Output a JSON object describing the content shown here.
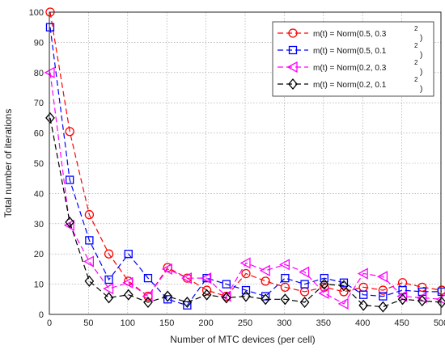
{
  "chart_data": {
    "type": "line",
    "xlabel": "Number of MTC devices (per cell)",
    "ylabel": "Total number of iterations",
    "xlim": [
      0,
      500
    ],
    "ylim": [
      0,
      100
    ],
    "xticks": [
      "0",
      "50",
      "100",
      "150",
      "200",
      "250",
      "300",
      "350",
      "400",
      "450",
      "500"
    ],
    "yticks": [
      "0",
      "10",
      "20",
      "30",
      "40",
      "50",
      "60",
      "70",
      "80",
      "90",
      "100"
    ],
    "grid": true,
    "legend_position": "top-right",
    "x": [
      1,
      26,
      51,
      76,
      101,
      126,
      151,
      176,
      201,
      226,
      251,
      276,
      301,
      326,
      351,
      376,
      401,
      426,
      451,
      476,
      501
    ],
    "series": [
      {
        "name": "m(t) = Norm(0.5, 0.3",
        "sup": "2",
        "close": ")",
        "color": "#ff0000",
        "marker": "circle",
        "values": [
          100,
          60.5,
          33,
          20,
          11,
          6,
          15.5,
          12,
          8,
          6,
          13.5,
          11,
          9,
          7.5,
          9,
          7.5,
          9,
          8,
          10.5,
          9,
          8
        ]
      },
      {
        "name": "m(t) = Norm(0.5, 0.1",
        "sup": "2",
        "close": ")",
        "color": "#0000ff",
        "marker": "square",
        "values": [
          95,
          44.5,
          24.5,
          11.5,
          20,
          12,
          5,
          3,
          12,
          10,
          8,
          6,
          12,
          10,
          12,
          10.5,
          6.5,
          6,
          8,
          7.5,
          7.5
        ]
      },
      {
        "name": "m(t) = Norm(0.2, 0.3",
        "sup": "2",
        "close": ")",
        "color": "#ff00ff",
        "marker": "triangle-left",
        "values": [
          80,
          29.5,
          17.5,
          8.5,
          10.5,
          6,
          15,
          12,
          12,
          6,
          17,
          14.5,
          16.5,
          14,
          7,
          3.5,
          13.5,
          12.5,
          6,
          5.5,
          5
        ]
      },
      {
        "name": "m(t) = Norm(0.2, 0.1",
        "sup": "2",
        "close": ")",
        "color": "#000000",
        "marker": "diamond",
        "values": [
          65,
          30.5,
          11,
          5.5,
          6.5,
          4,
          6,
          4,
          6.5,
          5.5,
          6,
          5,
          5,
          4,
          10,
          9.5,
          3,
          2.5,
          5,
          4.5,
          4
        ]
      }
    ]
  }
}
